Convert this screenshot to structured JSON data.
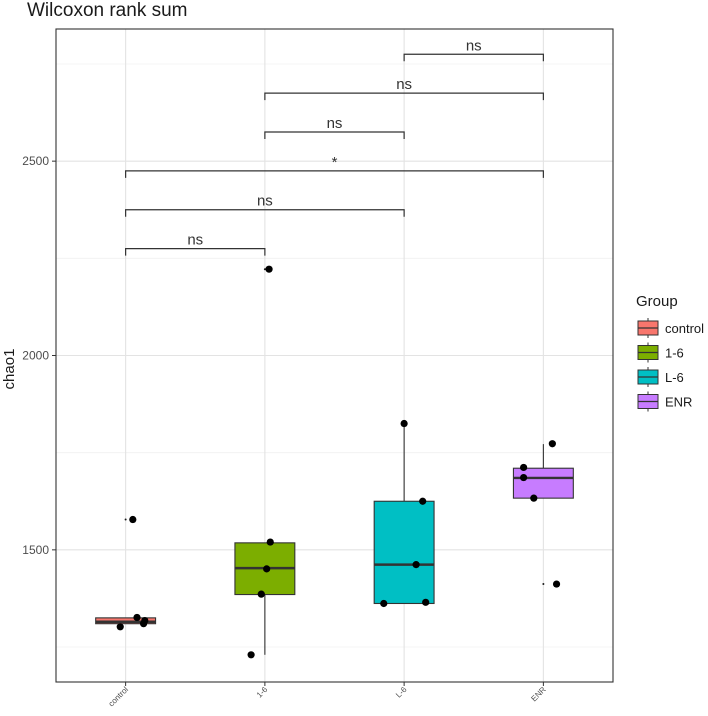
{
  "chart_data": {
    "type": "box",
    "title": "Wilcoxon rank sum",
    "xlabel": "",
    "ylabel": "chao1",
    "ylim": [
      1160,
      2840
    ],
    "yticks": [
      1500,
      2000,
      2500
    ],
    "grid": true,
    "categories": [
      "control",
      "1-6",
      "L-6",
      "ENR"
    ],
    "colors": {
      "control": "#F8766D",
      "1-6": "#7CAE00",
      "L-6": "#00BFC4",
      "ENR": "#C77CFF"
    },
    "boxes": [
      {
        "group": "control",
        "min": 1310,
        "q1": 1310,
        "median": 1315,
        "q3": 1325,
        "max": 1325,
        "outliers": [
          1578
        ]
      },
      {
        "group": "1-6",
        "min": 1230,
        "q1": 1385,
        "median": 1453,
        "q3": 1518,
        "max": 1518,
        "outliers": [
          2222
        ]
      },
      {
        "group": "L-6",
        "min": 1362,
        "q1": 1362,
        "median": 1462,
        "q3": 1625,
        "max": 1825,
        "outliers": []
      },
      {
        "group": "ENR",
        "min": 1633,
        "q1": 1633,
        "median": 1685,
        "q3": 1710,
        "max": 1772,
        "outliers": [
          1412
        ]
      }
    ],
    "points": [
      {
        "group": "control",
        "jitter": -0.09,
        "y": 1302
      },
      {
        "group": "control",
        "jitter": 0.12,
        "y": 1578
      },
      {
        "group": "control",
        "jitter": 0.19,
        "y": 1326
      },
      {
        "group": "control",
        "jitter": 0.3,
        "y": 1310
      },
      {
        "group": "control",
        "jitter": 0.32,
        "y": 1318
      },
      {
        "group": "1-6",
        "jitter": -0.23,
        "y": 1230
      },
      {
        "group": "1-6",
        "jitter": -0.06,
        "y": 1386
      },
      {
        "group": "1-6",
        "jitter": 0.03,
        "y": 1451
      },
      {
        "group": "1-6",
        "jitter": 0.07,
        "y": 2222
      },
      {
        "group": "1-6",
        "jitter": 0.09,
        "y": 1520
      },
      {
        "group": "L-6",
        "jitter": -0.34,
        "y": 1362
      },
      {
        "group": "L-6",
        "jitter": 0.0,
        "y": 1825
      },
      {
        "group": "L-6",
        "jitter": 0.2,
        "y": 1462
      },
      {
        "group": "L-6",
        "jitter": 0.31,
        "y": 1625
      },
      {
        "group": "L-6",
        "jitter": 0.36,
        "y": 1365
      },
      {
        "group": "ENR",
        "jitter": -0.33,
        "y": 1686
      },
      {
        "group": "ENR",
        "jitter": -0.33,
        "y": 1712
      },
      {
        "group": "ENR",
        "jitter": -0.16,
        "y": 1633
      },
      {
        "group": "ENR",
        "jitter": 0.15,
        "y": 1773
      },
      {
        "group": "ENR",
        "jitter": 0.22,
        "y": 1412
      }
    ],
    "comparisons": [
      {
        "from": "control",
        "to": "1-6",
        "y": 2275,
        "label": "ns"
      },
      {
        "from": "control",
        "to": "L-6",
        "y": 2375,
        "label": "ns"
      },
      {
        "from": "control",
        "to": "ENR",
        "y": 2475,
        "label": "*"
      },
      {
        "from": "1-6",
        "to": "L-6",
        "y": 2575,
        "label": "ns"
      },
      {
        "from": "1-6",
        "to": "ENR",
        "y": 2675,
        "label": "ns"
      },
      {
        "from": "L-6",
        "to": "ENR",
        "y": 2775,
        "label": "ns"
      }
    ],
    "legend": {
      "title": "Group",
      "position": "right",
      "items": [
        "control",
        "1-6",
        "L-6",
        "ENR"
      ]
    }
  }
}
